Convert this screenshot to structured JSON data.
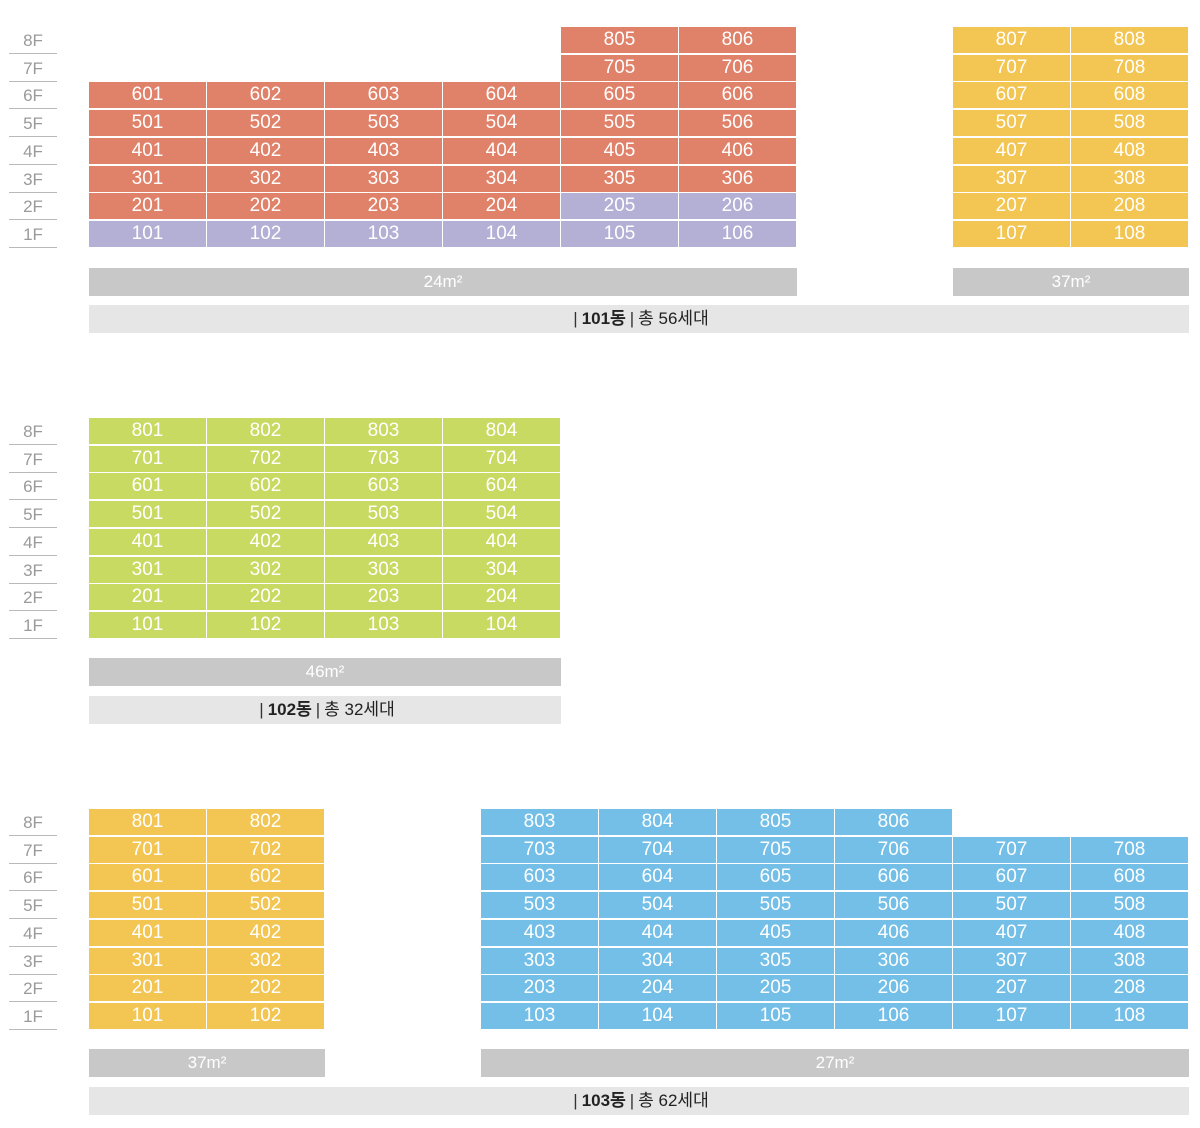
{
  "floors": [
    "8F",
    "7F",
    "6F",
    "5F",
    "4F",
    "3F",
    "2F",
    "1F"
  ],
  "colors": {
    "orange": "#e0826a",
    "purple": "#b4afd5",
    "yellow": "#f3c552",
    "green": "#c9da62",
    "blue": "#74bfe7"
  },
  "buildings": [
    {
      "name": "101동",
      "total_label": "총",
      "total_units": "56세대",
      "area_groups": [
        {
          "label": "24m²"
        },
        {
          "label": "37m²"
        }
      ],
      "columns": [
        {
          "units": [
            null,
            null,
            "601",
            "501",
            "401",
            "301",
            "201",
            "101"
          ],
          "colors": [
            null,
            null,
            "orange",
            "orange",
            "orange",
            "orange",
            "orange",
            "purple"
          ]
        },
        {
          "units": [
            null,
            null,
            "602",
            "502",
            "402",
            "302",
            "202",
            "102"
          ],
          "colors": [
            null,
            null,
            "orange",
            "orange",
            "orange",
            "orange",
            "orange",
            "purple"
          ]
        },
        {
          "units": [
            null,
            null,
            "603",
            "503",
            "403",
            "303",
            "203",
            "103"
          ],
          "colors": [
            null,
            null,
            "orange",
            "orange",
            "orange",
            "orange",
            "orange",
            "purple"
          ]
        },
        {
          "units": [
            null,
            null,
            "604",
            "504",
            "404",
            "304",
            "204",
            "104"
          ],
          "colors": [
            null,
            null,
            "orange",
            "orange",
            "orange",
            "orange",
            "orange",
            "purple"
          ]
        },
        {
          "units": [
            "805",
            "705",
            "605",
            "505",
            "405",
            "305",
            "205",
            "105"
          ],
          "colors": [
            "orange",
            "orange",
            "orange",
            "orange",
            "orange",
            "orange",
            "purple",
            "purple"
          ]
        },
        {
          "units": [
            "806",
            "706",
            "606",
            "506",
            "406",
            "306",
            "206",
            "106"
          ],
          "colors": [
            "orange",
            "orange",
            "orange",
            "orange",
            "orange",
            "orange",
            "purple",
            "purple"
          ]
        },
        {
          "units": [
            "807",
            "707",
            "607",
            "507",
            "407",
            "307",
            "207",
            "107"
          ],
          "colors": [
            "yellow",
            "yellow",
            "yellow",
            "yellow",
            "yellow",
            "yellow",
            "yellow",
            "yellow"
          ]
        },
        {
          "units": [
            "808",
            "708",
            "608",
            "508",
            "408",
            "308",
            "208",
            "108"
          ],
          "colors": [
            "yellow",
            "yellow",
            "yellow",
            "yellow",
            "yellow",
            "yellow",
            "yellow",
            "yellow"
          ]
        }
      ]
    },
    {
      "name": "102동",
      "total_label": "총",
      "total_units": "32세대",
      "area_groups": [
        {
          "label": "46m²"
        }
      ],
      "columns": [
        {
          "units": [
            "801",
            "701",
            "601",
            "501",
            "401",
            "301",
            "201",
            "101"
          ],
          "colors": [
            "green",
            "green",
            "green",
            "green",
            "green",
            "green",
            "green",
            "green"
          ]
        },
        {
          "units": [
            "802",
            "702",
            "602",
            "502",
            "402",
            "302",
            "202",
            "102"
          ],
          "colors": [
            "green",
            "green",
            "green",
            "green",
            "green",
            "green",
            "green",
            "green"
          ]
        },
        {
          "units": [
            "803",
            "703",
            "603",
            "503",
            "403",
            "303",
            "203",
            "103"
          ],
          "colors": [
            "green",
            "green",
            "green",
            "green",
            "green",
            "green",
            "green",
            "green"
          ]
        },
        {
          "units": [
            "804",
            "704",
            "604",
            "504",
            "404",
            "304",
            "204",
            "104"
          ],
          "colors": [
            "green",
            "green",
            "green",
            "green",
            "green",
            "green",
            "green",
            "green"
          ]
        }
      ]
    },
    {
      "name": "103동",
      "total_label": "총",
      "total_units": "62세대",
      "area_groups": [
        {
          "label": "37m²"
        },
        {
          "label": "27m²"
        }
      ],
      "columns": [
        {
          "units": [
            "801",
            "701",
            "601",
            "501",
            "401",
            "301",
            "201",
            "101"
          ],
          "colors": [
            "yellow",
            "yellow",
            "yellow",
            "yellow",
            "yellow",
            "yellow",
            "yellow",
            "yellow"
          ]
        },
        {
          "units": [
            "802",
            "702",
            "602",
            "502",
            "402",
            "302",
            "202",
            "102"
          ],
          "colors": [
            "yellow",
            "yellow",
            "yellow",
            "yellow",
            "yellow",
            "yellow",
            "yellow",
            "yellow"
          ]
        },
        {
          "units": [
            "803",
            "703",
            "603",
            "503",
            "403",
            "303",
            "203",
            "103"
          ],
          "colors": [
            "blue",
            "blue",
            "blue",
            "blue",
            "blue",
            "blue",
            "blue",
            "blue"
          ]
        },
        {
          "units": [
            "804",
            "704",
            "604",
            "504",
            "404",
            "304",
            "204",
            "104"
          ],
          "colors": [
            "blue",
            "blue",
            "blue",
            "blue",
            "blue",
            "blue",
            "blue",
            "blue"
          ]
        },
        {
          "units": [
            "805",
            "705",
            "605",
            "505",
            "405",
            "305",
            "205",
            "105"
          ],
          "colors": [
            "blue",
            "blue",
            "blue",
            "blue",
            "blue",
            "blue",
            "blue",
            "blue"
          ]
        },
        {
          "units": [
            "806",
            "706",
            "606",
            "506",
            "406",
            "306",
            "206",
            "106"
          ],
          "colors": [
            "blue",
            "blue",
            "blue",
            "blue",
            "blue",
            "blue",
            "blue",
            "blue"
          ]
        },
        {
          "units": [
            null,
            "707",
            "607",
            "507",
            "407",
            "307",
            "207",
            "107"
          ],
          "colors": [
            null,
            "blue",
            "blue",
            "blue",
            "blue",
            "blue",
            "blue",
            "blue"
          ]
        },
        {
          "units": [
            null,
            "708",
            "608",
            "508",
            "408",
            "308",
            "208",
            "108"
          ],
          "colors": [
            null,
            "blue",
            "blue",
            "blue",
            "blue",
            "blue",
            "blue",
            "blue"
          ]
        }
      ]
    }
  ]
}
